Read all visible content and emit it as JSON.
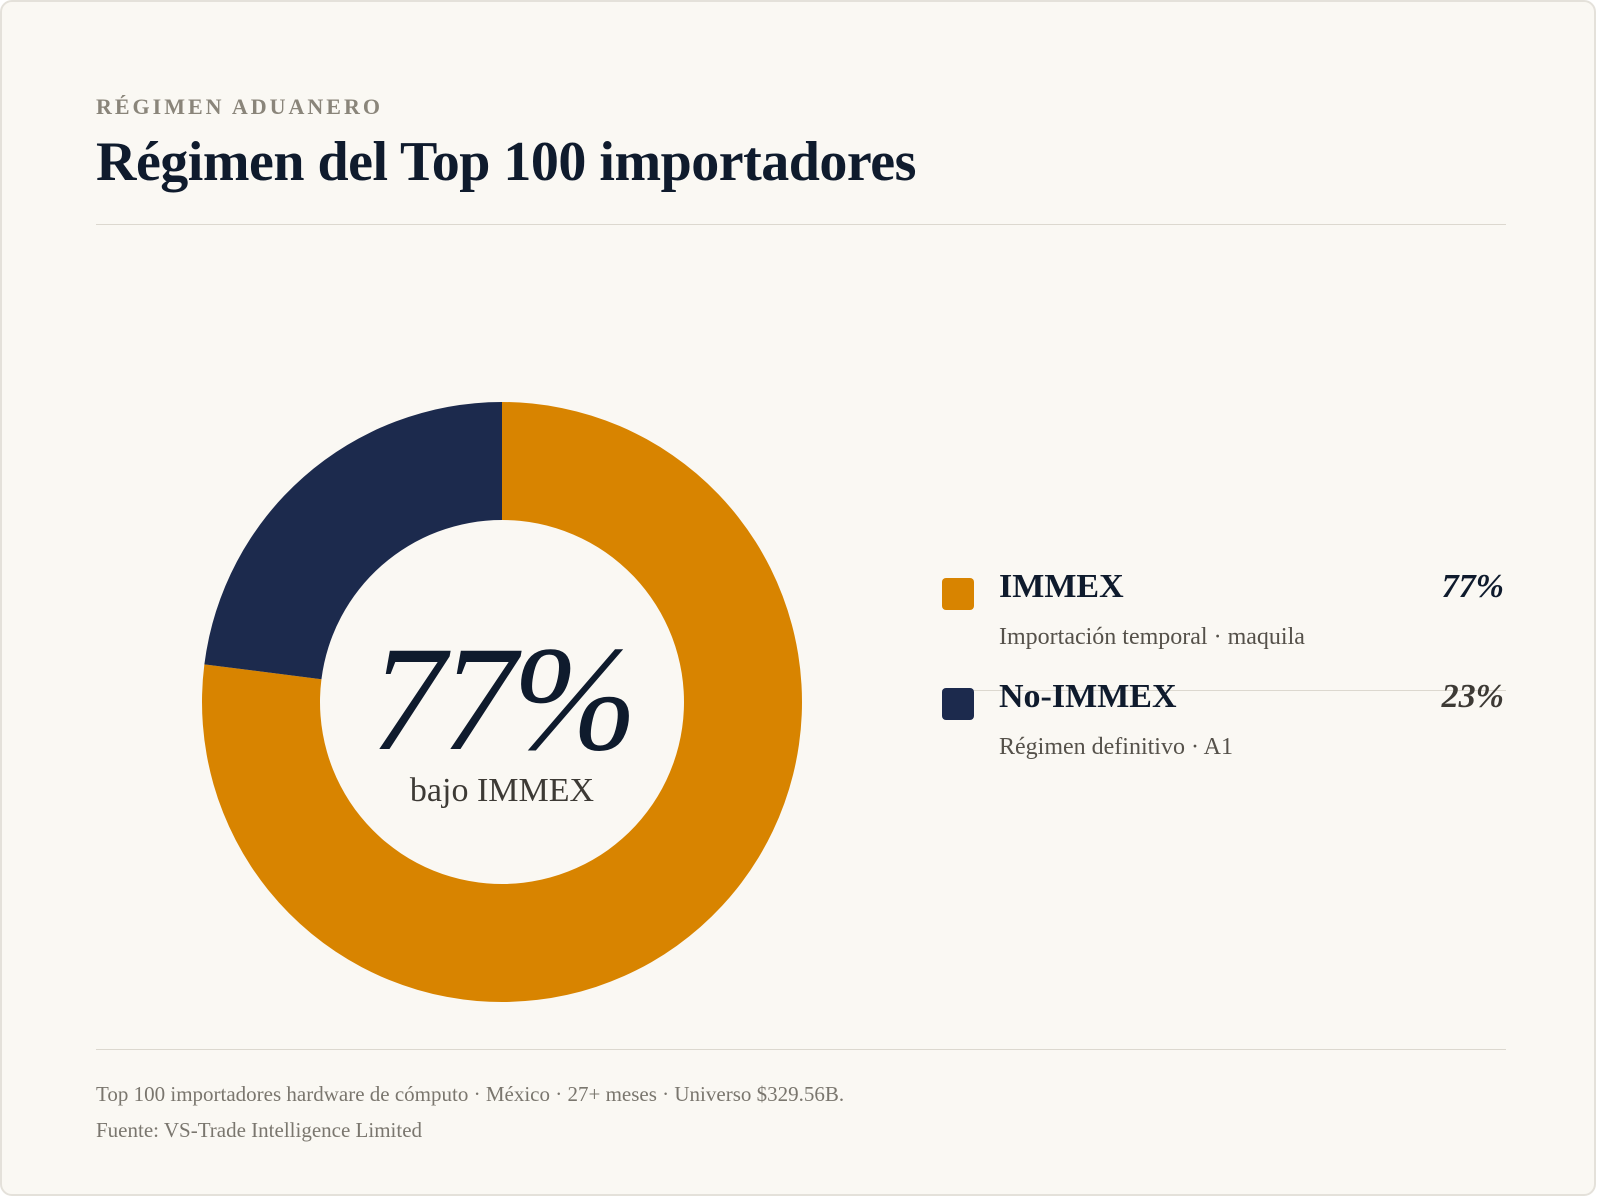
{
  "header": {
    "eyebrow": "RÉGIMEN ADUANERO",
    "title": "Régimen del Top 100 importadores"
  },
  "center": {
    "value": "77%",
    "label": "bajo IMMEX"
  },
  "legend": [
    {
      "name": "IMMEX",
      "pct": "77%",
      "sub": "Importación temporal · maquila",
      "color": "#d88400",
      "pct_color": "#0f1b2d"
    },
    {
      "name": "No-IMMEX",
      "pct": "23%",
      "sub": "Régimen definitivo · A1",
      "color": "#1c2a4d",
      "pct_color": "#3d3a35"
    }
  ],
  "footer": {
    "note": "Top 100 importadores hardware de cómputo · México · 27+ meses · Universo $329.56B.",
    "source": "Fuente: VS-Trade Intelligence Limited"
  },
  "chart_data": {
    "type": "pie",
    "variant": "donut",
    "categories": [
      "IMMEX",
      "No-IMMEX"
    ],
    "values": [
      77,
      23
    ],
    "unit": "%",
    "colors": [
      "#d88400",
      "#1c2a4d"
    ],
    "start_angle": "12 o'clock",
    "direction": "clockwise"
  }
}
